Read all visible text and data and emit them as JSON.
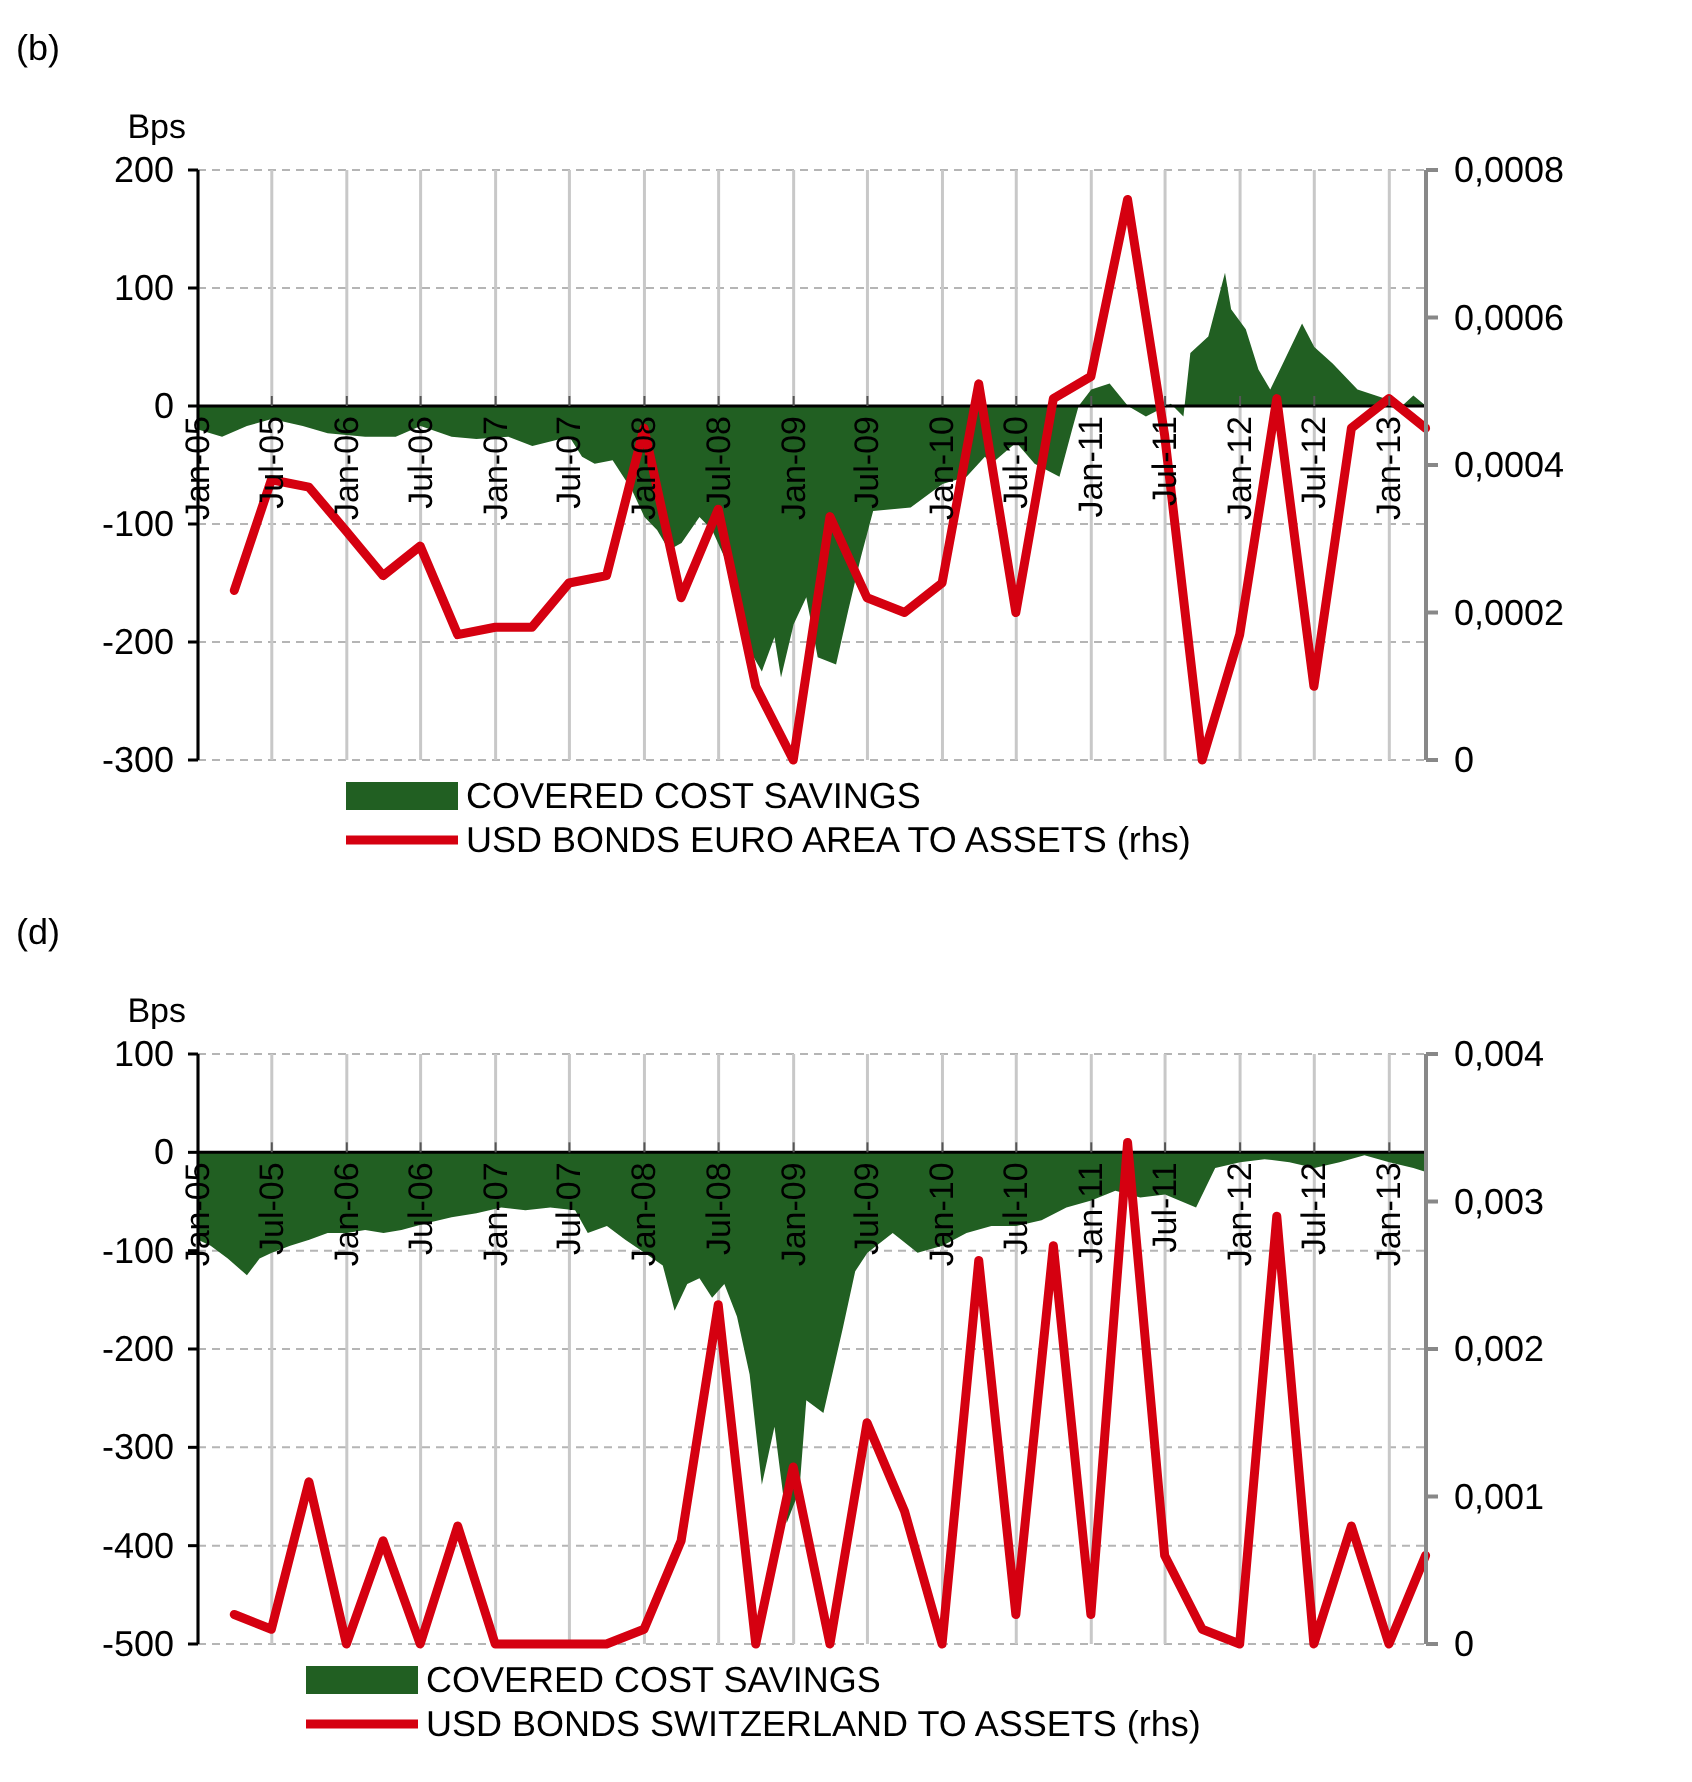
{
  "chart_data": [
    {
      "type": "area",
      "title": "(b)",
      "ylabel": "Bps",
      "xlim": [
        "2005-01-01",
        "2013-04-01"
      ],
      "xticks": [
        {
          "value": "2005-01-01",
          "label": "Jan-05"
        },
        {
          "value": "2005-07-01",
          "label": "Jul-05"
        },
        {
          "value": "2006-01-01",
          "label": "Jan-06"
        },
        {
          "value": "2006-07-01",
          "label": "Jul-06"
        },
        {
          "value": "2007-01-01",
          "label": "Jan-07"
        },
        {
          "value": "2007-07-01",
          "label": "Jul-07"
        },
        {
          "value": "2008-01-01",
          "label": "Jan-08"
        },
        {
          "value": "2008-07-01",
          "label": "Jul-08"
        },
        {
          "value": "2009-01-01",
          "label": "Jan-09"
        },
        {
          "value": "2009-07-01",
          "label": "Jul-09"
        },
        {
          "value": "2010-01-01",
          "label": "Jan-10"
        },
        {
          "value": "2010-07-01",
          "label": "Jul-10"
        },
        {
          "value": "2011-01-01",
          "label": "Jan-11"
        },
        {
          "value": "2011-07-01",
          "label": "Jul-11"
        },
        {
          "value": "2012-01-01",
          "label": "Jan-12"
        },
        {
          "value": "2012-07-01",
          "label": "Jul-12"
        },
        {
          "value": "2013-01-01",
          "label": "Jan-13"
        }
      ],
      "ylim": [
        -300,
        200
      ],
      "yticks": [
        -300,
        -200,
        -100,
        0,
        100,
        200
      ],
      "y2lim": [
        0,
        0.0008
      ],
      "y2ticks": [
        0,
        {
          "value": 0.0002,
          "label": "0,0002"
        },
        {
          "value": 0.0004,
          "label": "0,0004"
        },
        {
          "value": 0.0006,
          "label": "0,0006"
        },
        {
          "value": 0.0008,
          "label": "0,0008"
        }
      ],
      "grid": true,
      "legend": "bottom",
      "series": [
        {
          "name": "COVERED COST SAVINGS",
          "color": "#215f22",
          "x": [
            "2005-01-01",
            "2005-03-01",
            "2005-05-01",
            "2005-07-01",
            "2005-09-15",
            "2005-11-15",
            "2006-02-15",
            "2006-05-01",
            "2006-07-01",
            "2006-09-15",
            "2006-11-15",
            "2007-02-01",
            "2007-04-01",
            "2007-07-01",
            "2007-08-01",
            "2007-09-01",
            "2007-10-15",
            "2007-12-01",
            "2008-01-01",
            "2008-02-01",
            "2008-03-01",
            "2008-04-01",
            "2008-05-15",
            "2008-06-15",
            "2008-07-15",
            "2008-08-15",
            "2008-09-15",
            "2008-10-15",
            "2008-11-15",
            "2008-12-01",
            "2009-01-01",
            "2009-02-01",
            "2009-03-01",
            "2009-04-15",
            "2009-05-15",
            "2009-06-15",
            "2009-07-15",
            "2009-10-15",
            "2010-01-01",
            "2010-03-01",
            "2010-04-15",
            "2010-05-01",
            "2010-07-01",
            "2010-08-15",
            "2010-10-15",
            "2010-11-15",
            "2010-12-01",
            "2011-01-01",
            "2011-02-15",
            "2011-04-01",
            "2011-05-15",
            "2011-07-15",
            "2011-08-15",
            "2011-09-01",
            "2011-10-15",
            "2011-11-25",
            "2011-12-10",
            "2012-01-15",
            "2012-02-15",
            "2012-03-15",
            "2012-04-15",
            "2012-06-01",
            "2012-07-01",
            "2012-08-15",
            "2012-10-15",
            "2013-01-01",
            "2013-02-01",
            "2013-03-01",
            "2013-04-01"
          ],
          "values": [
            -20,
            -26,
            -17,
            -11,
            -17,
            -23,
            -26,
            -26,
            -17,
            -26,
            -28,
            -26,
            -34,
            -26,
            -43,
            -49,
            -46,
            -71,
            -94,
            -105,
            -122,
            -116,
            -94,
            -105,
            -128,
            -173,
            -207,
            -225,
            -196,
            -230,
            -185,
            -162,
            -213,
            -219,
            -173,
            -128,
            -89,
            -86,
            -66,
            -60,
            -43,
            -49,
            -31,
            -49,
            -60,
            -20,
            0,
            14,
            19,
            0,
            -9,
            2,
            -9,
            45,
            59,
            113,
            82,
            65,
            31,
            14,
            36,
            70,
            50,
            36,
            14,
            5,
            0,
            9,
            0
          ]
        },
        {
          "name": "USD BONDS EURO AREA TO ASSETS (rhs)",
          "type": "line",
          "axis": "y2",
          "color": "#d50010",
          "x": [
            "2005-03-31",
            "2005-06-30",
            "2005-09-30",
            "2005-12-31",
            "2006-03-31",
            "2006-06-30",
            "2006-09-30",
            "2006-12-31",
            "2007-03-31",
            "2007-06-30",
            "2007-09-30",
            "2007-12-31",
            "2008-03-31",
            "2008-06-30",
            "2008-09-30",
            "2008-12-31",
            "2009-03-31",
            "2009-06-30",
            "2009-09-30",
            "2009-12-31",
            "2010-03-31",
            "2010-06-30",
            "2010-09-30",
            "2010-12-31",
            "2011-03-31",
            "2011-06-30",
            "2011-09-30",
            "2011-12-31",
            "2012-03-31",
            "2012-06-30",
            "2012-09-30",
            "2012-12-31",
            "2013-03-31"
          ],
          "values": [
            0.00023,
            0.00038,
            0.00037,
            0.00031,
            0.00025,
            0.00029,
            0.00017,
            0.00018,
            0.00018,
            0.00024,
            0.00025,
            0.00045,
            0.00022,
            0.00034,
            0.0001,
            0,
            0.00033,
            0.00022,
            0.0002,
            0.00024,
            0.00051,
            0.0002,
            0.00049,
            0.00052,
            0.00076,
            0.00044,
            0,
            0.00017,
            0.00049,
            0.0001,
            0.00045,
            0.00049,
            0.00045
          ]
        }
      ]
    },
    {
      "type": "area",
      "title": "(d)",
      "ylabel": "Bps",
      "xlim": [
        "2005-01-01",
        "2013-04-01"
      ],
      "xticks": [
        {
          "value": "2005-01-01",
          "label": "Jan-05"
        },
        {
          "value": "2005-07-01",
          "label": "Jul-05"
        },
        {
          "value": "2006-01-01",
          "label": "Jan-06"
        },
        {
          "value": "2006-07-01",
          "label": "Jul-06"
        },
        {
          "value": "2007-01-01",
          "label": "Jan-07"
        },
        {
          "value": "2007-07-01",
          "label": "Jul-07"
        },
        {
          "value": "2008-01-01",
          "label": "Jan-08"
        },
        {
          "value": "2008-07-01",
          "label": "Jul-08"
        },
        {
          "value": "2009-01-01",
          "label": "Jan-09"
        },
        {
          "value": "2009-07-01",
          "label": "Jul-09"
        },
        {
          "value": "2010-01-01",
          "label": "Jan-10"
        },
        {
          "value": "2010-07-01",
          "label": "Jul-10"
        },
        {
          "value": "2011-01-01",
          "label": "Jan-11"
        },
        {
          "value": "2011-07-01",
          "label": "Jul-11"
        },
        {
          "value": "2012-01-01",
          "label": "Jan-12"
        },
        {
          "value": "2012-07-01",
          "label": "Jul-12"
        },
        {
          "value": "2013-01-01",
          "label": "Jan-13"
        }
      ],
      "ylim": [
        -500,
        100
      ],
      "yticks": [
        -500,
        -400,
        -300,
        -200,
        -100,
        0,
        100
      ],
      "y2lim": [
        0,
        0.004
      ],
      "y2ticks": [
        0,
        {
          "value": 0.001,
          "label": "0,001"
        },
        {
          "value": 0.002,
          "label": "0,002"
        },
        {
          "value": 0.003,
          "label": "0,003"
        },
        {
          "value": 0.004,
          "label": "0,004"
        }
      ],
      "grid": true,
      "legend": "bottom",
      "series": [
        {
          "name": "COVERED COST SAVINGS",
          "color": "#215f22",
          "x": [
            "2005-01-01",
            "2005-02-01",
            "2005-03-15",
            "2005-05-01",
            "2005-06-01",
            "2005-07-01",
            "2005-08-15",
            "2005-10-01",
            "2005-11-15",
            "2006-01-01",
            "2006-02-15",
            "2006-04-01",
            "2006-05-15",
            "2006-07-15",
            "2006-09-15",
            "2006-11-15",
            "2007-01-15",
            "2007-03-15",
            "2007-05-15",
            "2007-07-15",
            "2007-08-15",
            "2007-10-01",
            "2007-11-15",
            "2008-01-01",
            "2008-02-15",
            "2008-03-15",
            "2008-04-15",
            "2008-05-15",
            "2008-06-15",
            "2008-07-15",
            "2008-08-15",
            "2008-09-15",
            "2008-10-15",
            "2008-11-15",
            "2008-12-15",
            "2009-01-15",
            "2009-02-01",
            "2009-03-15",
            "2009-05-01",
            "2009-06-01",
            "2009-07-01",
            "2009-09-01",
            "2009-11-01",
            "2010-01-01",
            "2010-03-01",
            "2010-05-01",
            "2010-07-01",
            "2010-09-01",
            "2010-11-01",
            "2011-01-01",
            "2011-03-01",
            "2011-05-01",
            "2011-07-01",
            "2011-09-15",
            "2011-11-01",
            "2012-01-01",
            "2012-03-01",
            "2012-05-01",
            "2012-07-01",
            "2012-09-01",
            "2012-11-01",
            "2013-01-01",
            "2013-03-01",
            "2013-04-01"
          ],
          "values": [
            -89,
            -95,
            -108,
            -125,
            -108,
            -102,
            -95,
            -89,
            -82,
            -82,
            -79,
            -82,
            -79,
            -72,
            -66,
            -62,
            -56,
            -59,
            -56,
            -59,
            -82,
            -75,
            -89,
            -102,
            -115,
            -161,
            -134,
            -128,
            -148,
            -134,
            -167,
            -226,
            -338,
            -279,
            -377,
            -344,
            -252,
            -265,
            -180,
            -121,
            -102,
            -82,
            -102,
            -95,
            -82,
            -75,
            -75,
            -69,
            -56,
            -49,
            -39,
            -46,
            -43,
            -56,
            -16,
            -10,
            -7,
            -10,
            -16,
            -10,
            -3,
            -10,
            -16,
            -20
          ]
        },
        {
          "name": "USD BONDS SWITZERLAND TO ASSETS (rhs)",
          "type": "line",
          "axis": "y2",
          "color": "#d50010",
          "x": [
            "2005-03-31",
            "2005-06-30",
            "2005-09-30",
            "2005-12-31",
            "2006-03-31",
            "2006-06-30",
            "2006-09-30",
            "2006-12-31",
            "2007-03-31",
            "2007-06-30",
            "2007-09-30",
            "2007-12-31",
            "2008-03-31",
            "2008-06-30",
            "2008-09-30",
            "2008-12-31",
            "2009-03-31",
            "2009-06-30",
            "2009-09-30",
            "2009-12-31",
            "2010-03-31",
            "2010-06-30",
            "2010-09-30",
            "2010-12-31",
            "2011-03-31",
            "2011-06-30",
            "2011-09-30",
            "2011-12-31",
            "2012-03-31",
            "2012-06-30",
            "2012-09-30",
            "2012-12-31",
            "2013-03-31"
          ],
          "values": [
            0.0002,
            0.0001,
            0.0011,
            0,
            0.0007,
            0,
            0.0008,
            0,
            0,
            0,
            0,
            0.0001,
            0.0007,
            0.0023,
            0,
            0.0012,
            0,
            0.0015,
            0.0009,
            0,
            0.0026,
            0.0002,
            0.0027,
            0.0002,
            0.0034,
            0.0006,
            0.0001,
            0,
            0.0029,
            0,
            0.0008,
            0,
            0.0006
          ]
        }
      ]
    }
  ]
}
